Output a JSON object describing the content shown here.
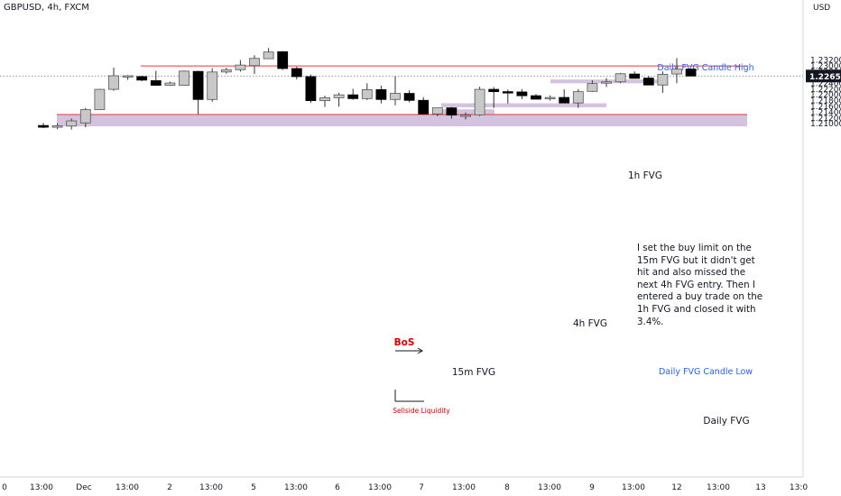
{
  "header": {
    "symbol": "GBPUSD, 4h, FXCM",
    "currency": "USD"
  },
  "note": "I set the buy limit on the 15m FVG but it didn't get hit and also missed the next 4h FVG entry. Then I entered a buy trade on the 1h FVG and closed it with 3.4%.",
  "chart_data": {
    "type": "candlestick",
    "title": "GBPUSD, 4h, FXCM",
    "ylabel": "USD",
    "ylim": [
      1.0888,
      1.2478
    ],
    "price_ticks": [
      "1.23200",
      "1.23000",
      "1.22800",
      "1.22600",
      "1.22400",
      "1.22200",
      "1.22000",
      "1.21800",
      "1.21600",
      "1.21400",
      "1.21200",
      "1.21000"
    ],
    "time_ticks": [
      "0",
      "13:00",
      "Dec",
      "13:00",
      "2",
      "13:00",
      "5",
      "13:00",
      "6",
      "13:00",
      "7",
      "13:00",
      "8",
      "13:00",
      "9",
      "13:00",
      "12",
      "13:00",
      "13",
      "13:0"
    ],
    "current_price": "1.22651",
    "candles": [
      {
        "o": 1.2094,
        "h": 1.2103,
        "l": 1.2085,
        "c": 1.2088
      },
      {
        "o": 1.2088,
        "h": 1.2102,
        "l": 1.2081,
        "c": 1.2093
      },
      {
        "o": 1.2092,
        "h": 1.2118,
        "l": 1.208,
        "c": 1.211
      },
      {
        "o": 1.2103,
        "h": 1.2155,
        "l": 1.2088,
        "c": 1.2149
      },
      {
        "o": 1.2149,
        "h": 1.2221,
        "l": 1.2148,
        "c": 1.2219
      },
      {
        "o": 1.2219,
        "h": 1.2294,
        "l": 1.2214,
        "c": 1.2266
      },
      {
        "o": 1.2263,
        "h": 1.2268,
        "l": 1.2252,
        "c": 1.2266
      },
      {
        "o": 1.2263,
        "h": 1.2266,
        "l": 1.2247,
        "c": 1.2251
      },
      {
        "o": 1.2249,
        "h": 1.2283,
        "l": 1.2233,
        "c": 1.2233
      },
      {
        "o": 1.2233,
        "h": 1.2246,
        "l": 1.2231,
        "c": 1.2241
      },
      {
        "o": 1.2233,
        "h": 1.2284,
        "l": 1.2232,
        "c": 1.2282
      },
      {
        "o": 1.2281,
        "h": 1.2283,
        "l": 1.2133,
        "c": 1.2184
      },
      {
        "o": 1.2184,
        "h": 1.2292,
        "l": 1.2176,
        "c": 1.2279
      },
      {
        "o": 1.2279,
        "h": 1.2294,
        "l": 1.2273,
        "c": 1.2287
      },
      {
        "o": 1.2287,
        "h": 1.232,
        "l": 1.228,
        "c": 1.2303
      },
      {
        "o": 1.2301,
        "h": 1.2337,
        "l": 1.2272,
        "c": 1.2326
      },
      {
        "o": 1.2325,
        "h": 1.2362,
        "l": 1.2324,
        "c": 1.2348
      },
      {
        "o": 1.2349,
        "h": 1.2351,
        "l": 1.2286,
        "c": 1.2291
      },
      {
        "o": 1.2291,
        "h": 1.2297,
        "l": 1.2253,
        "c": 1.2263
      },
      {
        "o": 1.2263,
        "h": 1.227,
        "l": 1.2172,
        "c": 1.218
      },
      {
        "o": 1.218,
        "h": 1.2197,
        "l": 1.2158,
        "c": 1.219
      },
      {
        "o": 1.219,
        "h": 1.2207,
        "l": 1.2159,
        "c": 1.22
      },
      {
        "o": 1.22,
        "h": 1.2221,
        "l": 1.2183,
        "c": 1.2187
      },
      {
        "o": 1.2187,
        "h": 1.224,
        "l": 1.2182,
        "c": 1.2218
      },
      {
        "o": 1.2218,
        "h": 1.2232,
        "l": 1.217,
        "c": 1.2184
      },
      {
        "o": 1.2184,
        "h": 1.2264,
        "l": 1.2164,
        "c": 1.2205
      },
      {
        "o": 1.2205,
        "h": 1.2216,
        "l": 1.2174,
        "c": 1.2181
      },
      {
        "o": 1.2181,
        "h": 1.2192,
        "l": 1.2132,
        "c": 1.2134
      },
      {
        "o": 1.2134,
        "h": 1.2155,
        "l": 1.2126,
        "c": 1.2155
      },
      {
        "o": 1.2155,
        "h": 1.2158,
        "l": 1.2118,
        "c": 1.213
      },
      {
        "o": 1.2129,
        "h": 1.2139,
        "l": 1.2115,
        "c": 1.213
      },
      {
        "o": 1.2131,
        "h": 1.2228,
        "l": 1.2127,
        "c": 1.2219
      },
      {
        "o": 1.2219,
        "h": 1.2227,
        "l": 1.2155,
        "c": 1.2211
      },
      {
        "o": 1.2211,
        "h": 1.2218,
        "l": 1.217,
        "c": 1.221
      },
      {
        "o": 1.221,
        "h": 1.222,
        "l": 1.2185,
        "c": 1.2197
      },
      {
        "o": 1.2197,
        "h": 1.2203,
        "l": 1.2184,
        "c": 1.2185
      },
      {
        "o": 1.2188,
        "h": 1.2198,
        "l": 1.218,
        "c": 1.2191
      },
      {
        "o": 1.2191,
        "h": 1.2219,
        "l": 1.2172,
        "c": 1.2172
      },
      {
        "o": 1.2172,
        "h": 1.222,
        "l": 1.2155,
        "c": 1.2211
      },
      {
        "o": 1.2212,
        "h": 1.225,
        "l": 1.221,
        "c": 1.2239
      },
      {
        "o": 1.2242,
        "h": 1.2258,
        "l": 1.2227,
        "c": 1.2245
      },
      {
        "o": 1.2245,
        "h": 1.2276,
        "l": 1.224,
        "c": 1.2273
      },
      {
        "o": 1.2272,
        "h": 1.2281,
        "l": 1.2256,
        "c": 1.2257
      },
      {
        "o": 1.2258,
        "h": 1.2266,
        "l": 1.2234,
        "c": 1.2234
      },
      {
        "o": 1.2234,
        "h": 1.2281,
        "l": 1.2207,
        "c": 1.2271
      },
      {
        "o": 1.2272,
        "h": 1.2327,
        "l": 1.224,
        "c": 1.2289
      },
      {
        "o": 1.2289,
        "h": 1.229,
        "l": 1.2265,
        "c": 1.2265
      }
    ],
    "levels": [
      {
        "label": "Daily FVG Candle High",
        "price": 1.23,
        "color": "#e53935"
      },
      {
        "label": "Daily FVG Candle Low",
        "price": 1.2132,
        "color": "#e53935"
      }
    ],
    "zones": [
      {
        "label": "Daily FVG",
        "top": 1.2132,
        "bottom": 1.2091,
        "fill": "#ccb8d9"
      },
      {
        "label": "4h FVG",
        "top": 1.2171,
        "bottom": 1.2157,
        "fill": "#ccb8d9"
      },
      {
        "label": "15m FVG",
        "top": 1.215,
        "bottom": 1.2134,
        "fill": "#ccb8d9"
      },
      {
        "label": "1h FVG",
        "top": 1.2253,
        "bottom": 1.224,
        "fill": "#ccb8d9"
      }
    ],
    "annotations": [
      {
        "text": "BoS",
        "color": "#d50000"
      },
      {
        "text": "Sellside Liquidity",
        "color": "#d50000"
      }
    ],
    "colors": {
      "bull": "#c8c8c8",
      "bear": "#000000",
      "wick": "#333333",
      "level_text": "#2962ff",
      "axis_text": "#131722"
    }
  }
}
